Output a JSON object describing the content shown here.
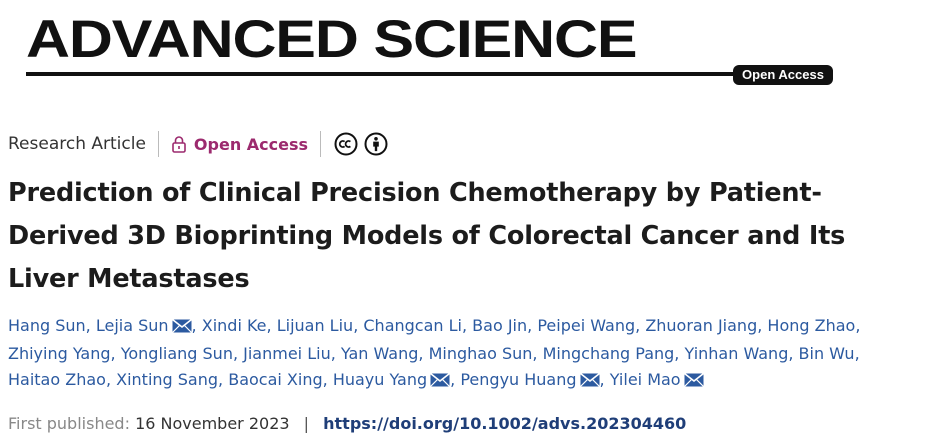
{
  "masthead": {
    "journal": "ADVANCED SCIENCE",
    "badge": "Open Access"
  },
  "meta": {
    "article_type": "Research Article",
    "access_label": "Open Access",
    "icons": [
      "lock-icon",
      "cc-icon",
      "by-icon"
    ]
  },
  "title": "Prediction of Clinical Precision Chemotherapy by Patient-Derived 3D Bioprinting Models of Colorectal Cancer and Its Liver Metastases",
  "authors": [
    {
      "name": "Hang Sun",
      "corresponding": false
    },
    {
      "name": "Lejia Sun",
      "corresponding": true
    },
    {
      "name": "Xindi Ke",
      "corresponding": false
    },
    {
      "name": "Lijuan Liu",
      "corresponding": false
    },
    {
      "name": "Changcan Li",
      "corresponding": false
    },
    {
      "name": "Bao Jin",
      "corresponding": false
    },
    {
      "name": "Peipei Wang",
      "corresponding": false
    },
    {
      "name": "Zhuoran Jiang",
      "corresponding": false
    },
    {
      "name": "Hong Zhao",
      "corresponding": false
    },
    {
      "name": "Zhiying Yang",
      "corresponding": false
    },
    {
      "name": "Yongliang Sun",
      "corresponding": false
    },
    {
      "name": "Jianmei Liu",
      "corresponding": false
    },
    {
      "name": "Yan Wang",
      "corresponding": false
    },
    {
      "name": "Minghao Sun",
      "corresponding": false
    },
    {
      "name": "Mingchang Pang",
      "corresponding": false
    },
    {
      "name": "Yinhan Wang",
      "corresponding": false
    },
    {
      "name": "Bin Wu",
      "corresponding": false
    },
    {
      "name": "Haitao Zhao",
      "corresponding": false
    },
    {
      "name": "Xinting Sang",
      "corresponding": false
    },
    {
      "name": "Baocai Xing",
      "corresponding": false
    },
    {
      "name": "Huayu Yang",
      "corresponding": true
    },
    {
      "name": "Pengyu Huang",
      "corresponding": true
    },
    {
      "name": "Yilei Mao",
      "corresponding": true
    }
  ],
  "publication": {
    "label": "First published:",
    "date": "16 November 2023",
    "separator": "|",
    "doi": "https://doi.org/10.1002/advs.202304460"
  },
  "colors": {
    "author_link": "#2c5aa0",
    "open_access": "#9c2a6e",
    "doi_link": "#1f3e78"
  }
}
